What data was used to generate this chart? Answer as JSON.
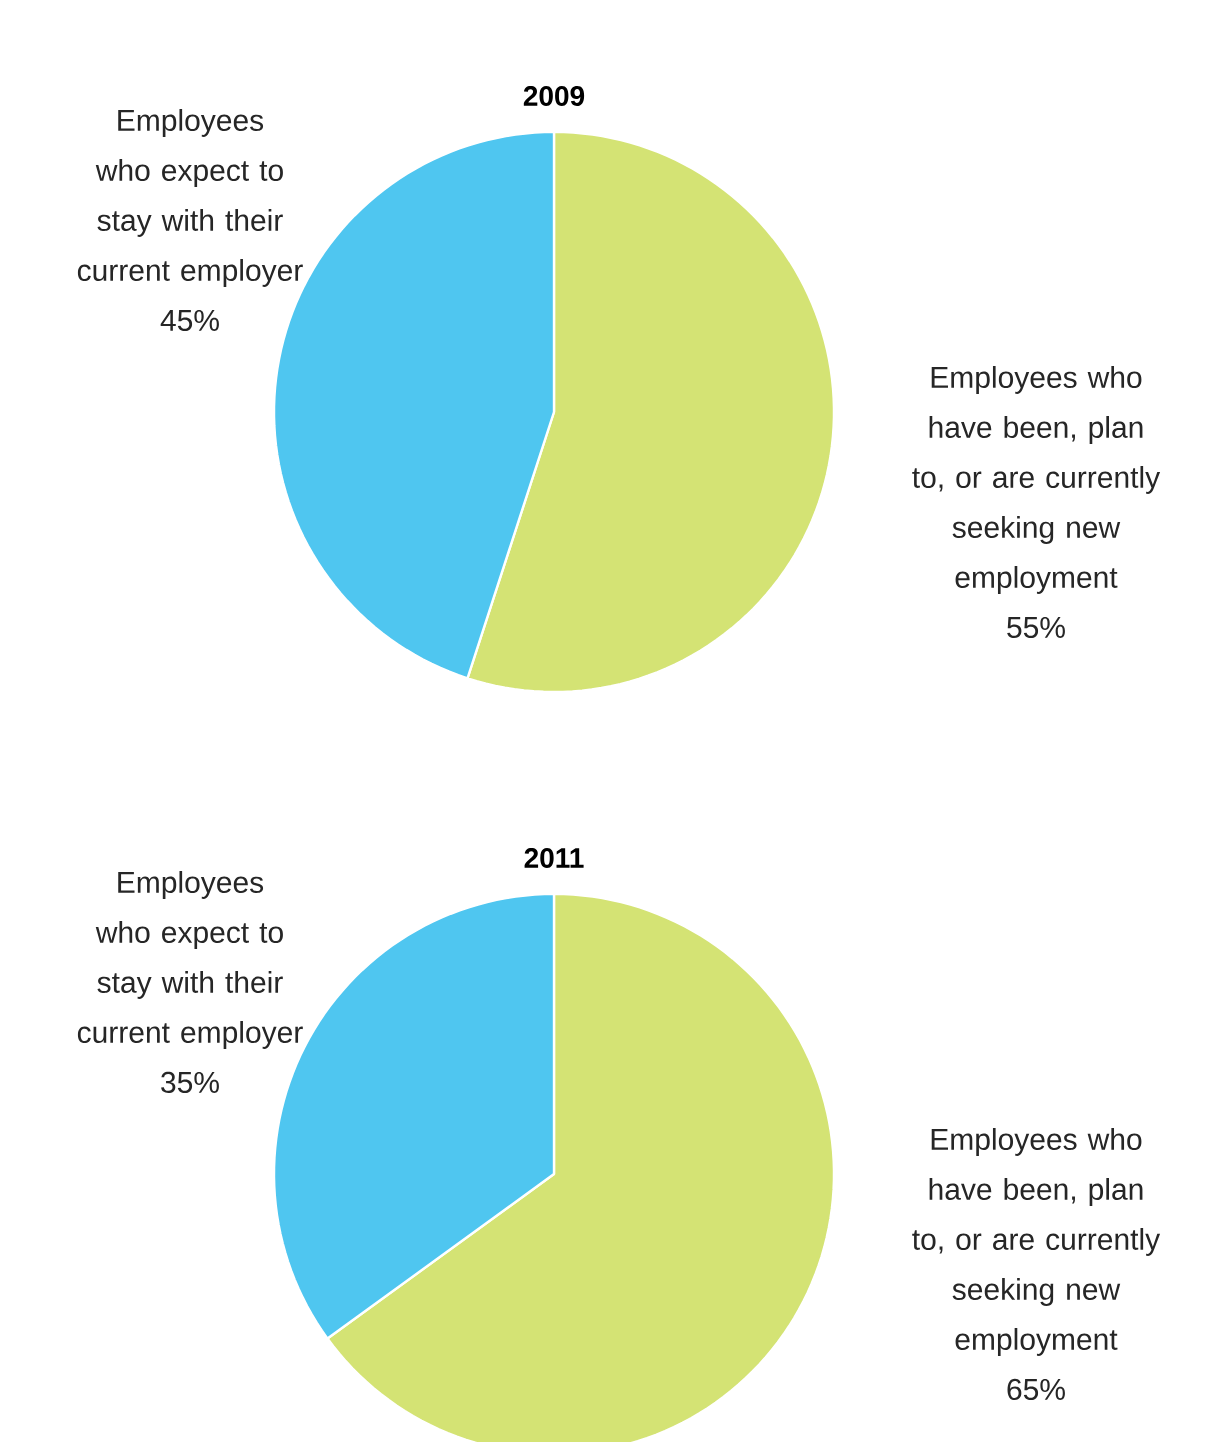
{
  "chart_data": [
    {
      "type": "pie",
      "title": "2009",
      "categories": [
        "Employees who have been, plan to, or are currently seeking new employment",
        "Employees who expect to stay with their current employer"
      ],
      "values": [
        55,
        45
      ],
      "colors": [
        "#d4e374",
        "#4fc6f0"
      ],
      "value_labels": [
        "55%",
        "45%"
      ]
    },
    {
      "type": "pie",
      "title": "2011",
      "categories": [
        "Employees who have been, plan to, or are currently seeking new employment",
        "Employees who expect to stay with their current employer"
      ],
      "values": [
        65,
        35
      ],
      "colors": [
        "#d4e374",
        "#4fc6f0"
      ],
      "value_labels": [
        "65%",
        "35%"
      ]
    }
  ]
}
